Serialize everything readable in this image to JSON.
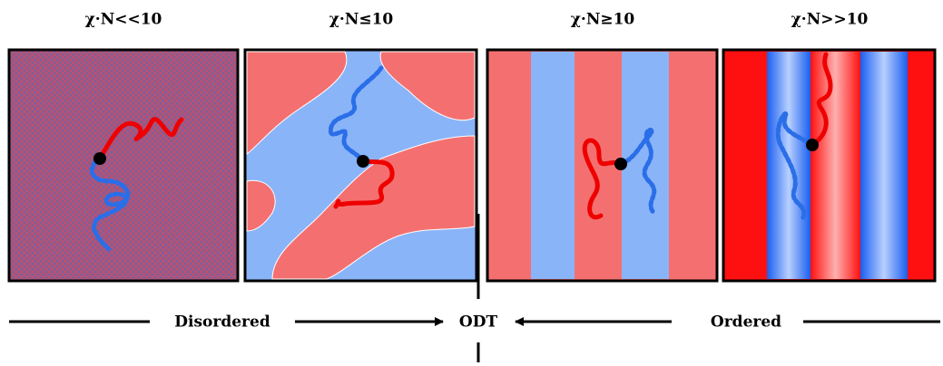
{
  "panels": [
    {
      "title": "χ·N<<10"
    },
    {
      "title": "χ·N≤10"
    },
    {
      "title": "χ·N≥10"
    },
    {
      "title": "χ·N>>10"
    }
  ],
  "arrows": {
    "left": "Disordered",
    "center": "ODT",
    "right": "Ordered"
  }
}
